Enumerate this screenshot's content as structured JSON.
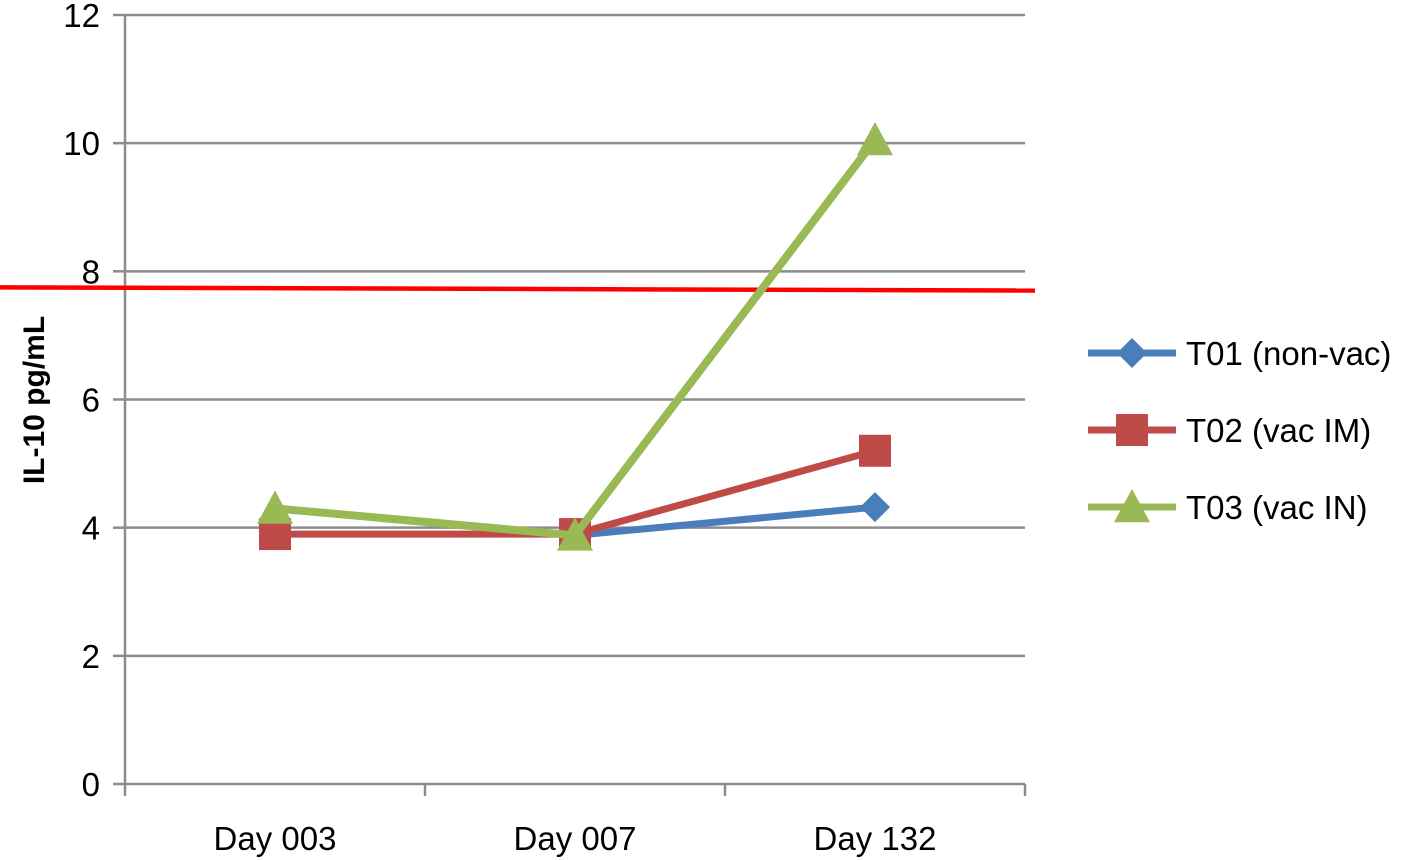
{
  "chart_data": {
    "type": "line",
    "title": "",
    "xlabel": "",
    "ylabel": "IL-10 pg/mL",
    "categories": [
      "Day 003",
      "Day 007",
      "Day 132"
    ],
    "ylim": [
      0,
      12
    ],
    "yticks": [
      0,
      2,
      4,
      6,
      8,
      10,
      12
    ],
    "grid": true,
    "legend_position": "right",
    "series": [
      {
        "name": "T01 (non-vac)",
        "values": [
          null,
          3.88,
          4.32
        ],
        "color": "#4a7ebb",
        "marker": "diamond"
      },
      {
        "name": "T02 (vac IM)",
        "values": [
          3.9,
          3.9,
          5.2
        ],
        "color": "#be4b48",
        "marker": "square"
      },
      {
        "name": "T03 (vac IN)",
        "values": [
          4.3,
          3.88,
          10.05
        ],
        "color": "#98b954",
        "marker": "triangle"
      }
    ],
    "reference_line": {
      "y_start": 7.75,
      "y_end": 7.7,
      "color": "#ff0000"
    }
  }
}
